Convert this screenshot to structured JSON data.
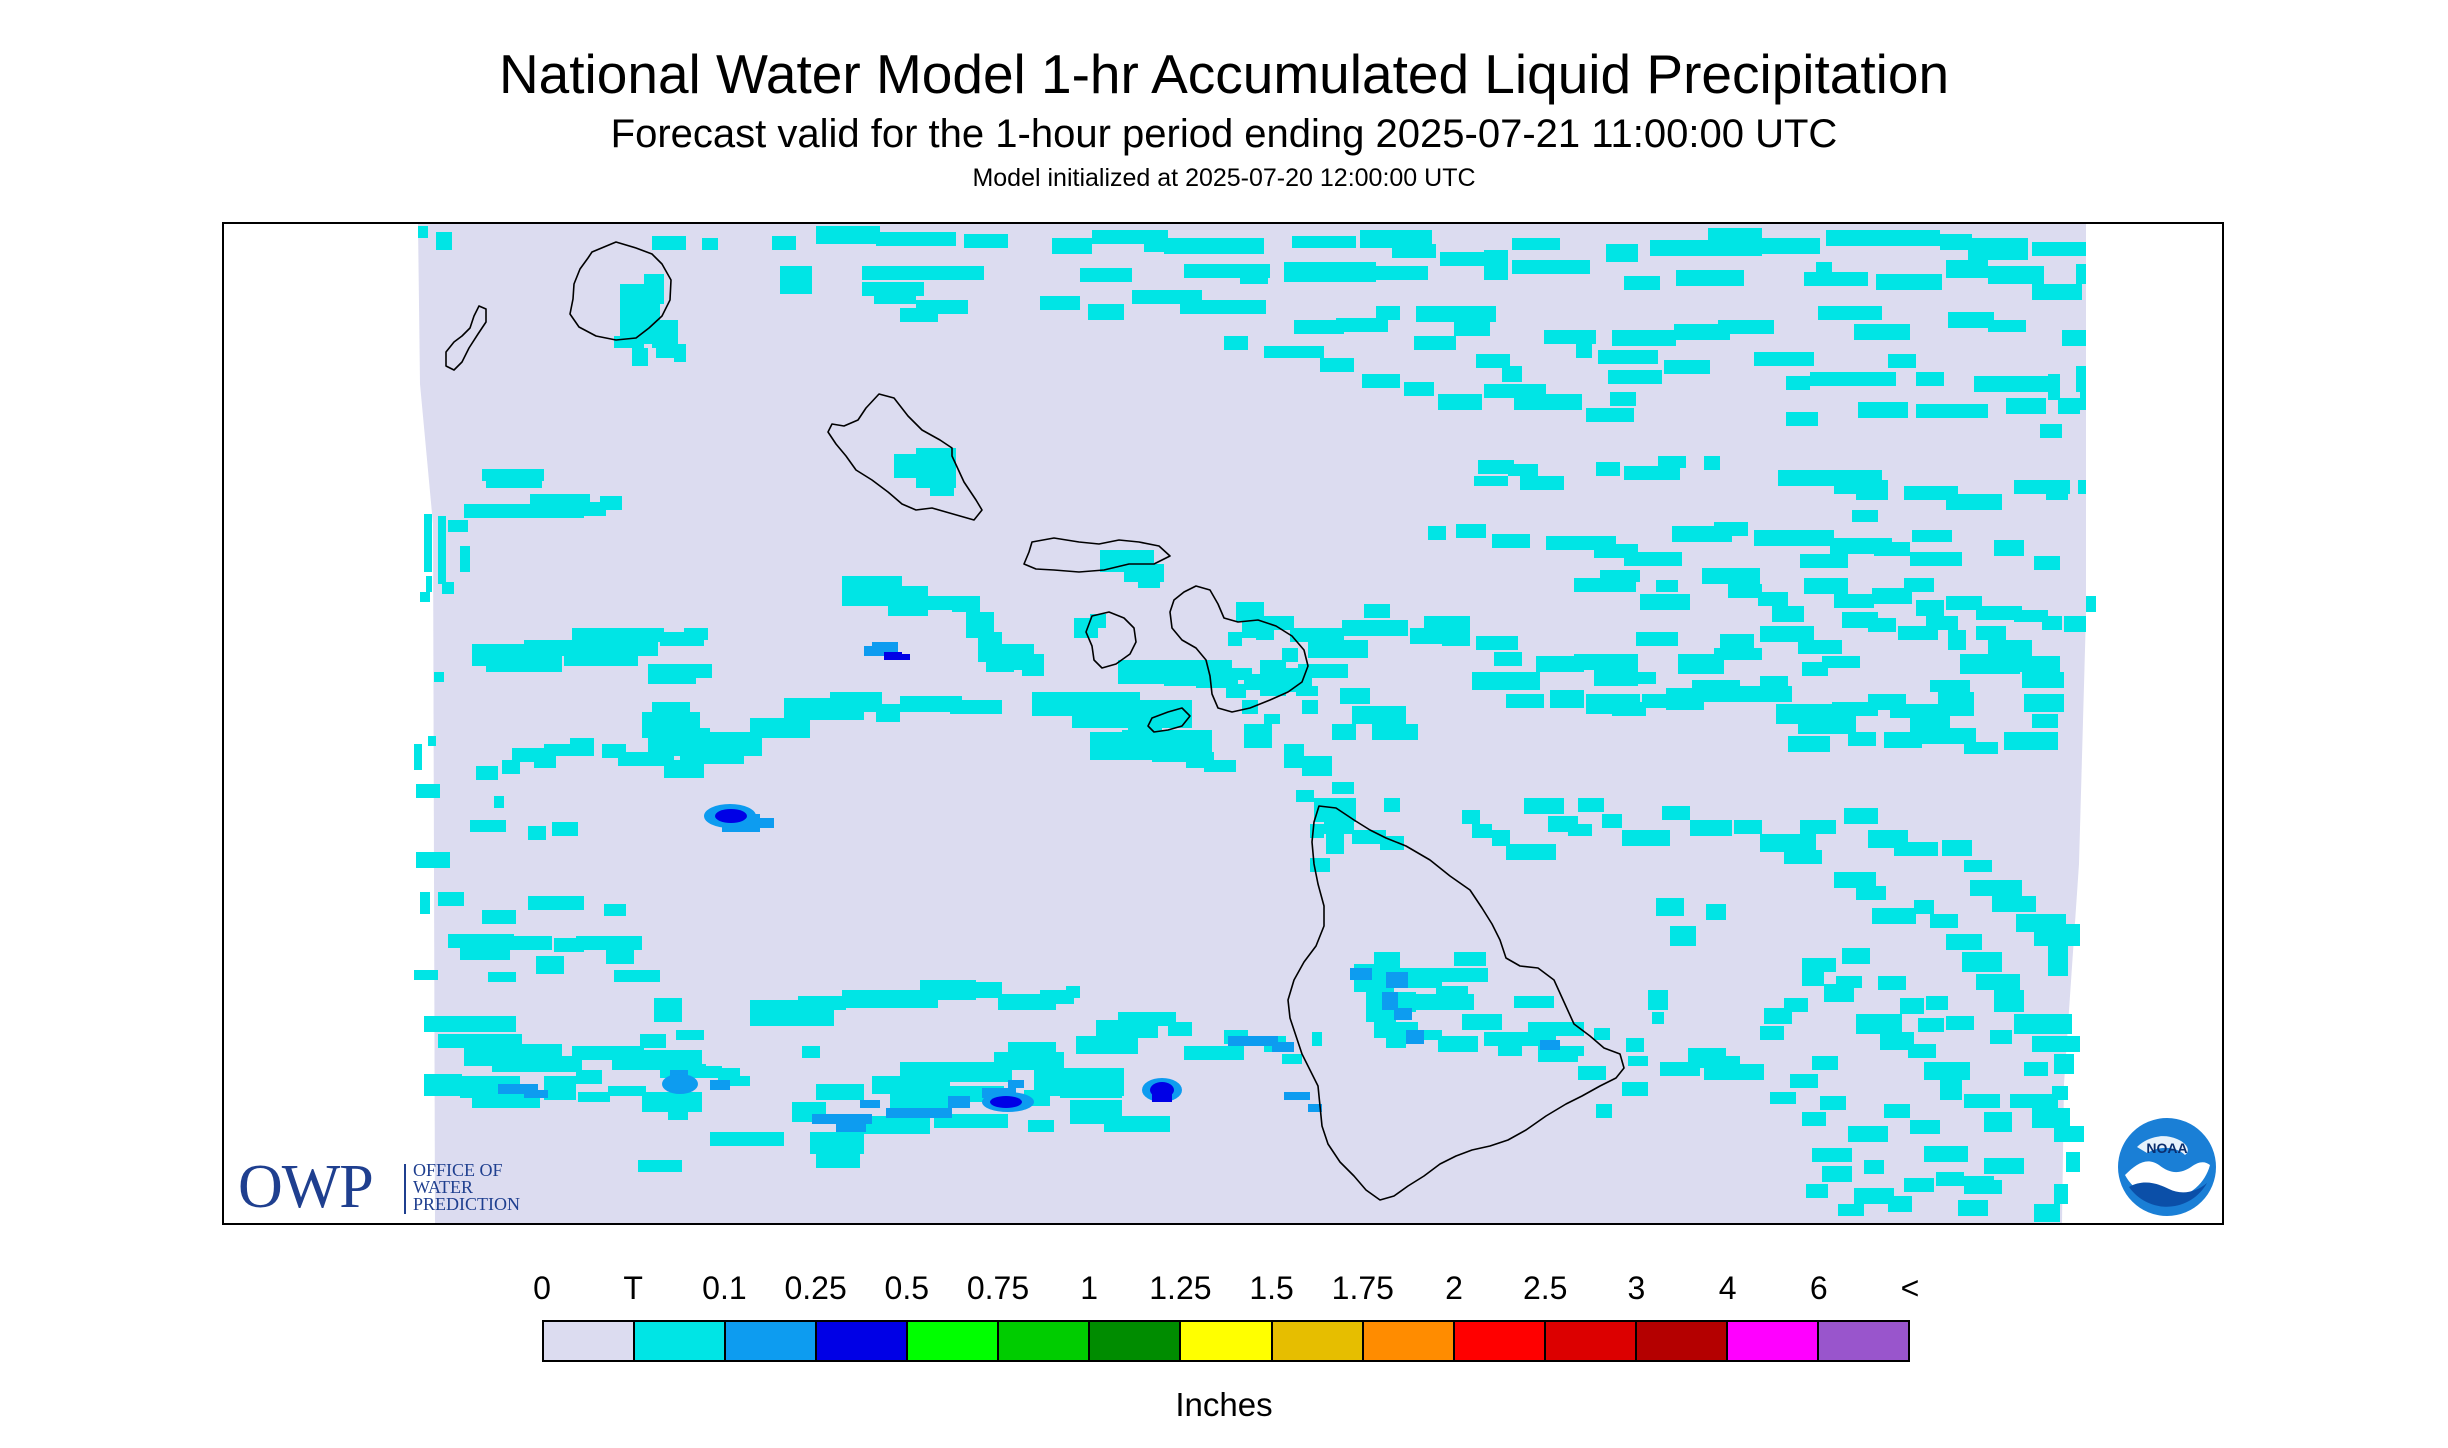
{
  "header": {
    "title": "National Water Model 1-hr Accumulated Liquid Precipitation",
    "subtitle": "Forecast valid for the 1-hour period ending 2025-07-21 11:00:00 UTC",
    "init_note": "Model initialized at 2025-07-20 12:00:00 UTC"
  },
  "logos": {
    "owp_mark": "OWP",
    "owp_lines": [
      "Office of",
      "Water",
      "Prediction"
    ],
    "noaa_mark": "NOAA"
  },
  "legend": {
    "labels": [
      "0",
      "T",
      "0.1",
      "0.25",
      "0.5",
      "0.75",
      "1",
      "1.25",
      "1.5",
      "1.75",
      "2",
      "2.5",
      "3",
      "4",
      "6",
      "<"
    ],
    "colors": [
      "#dcdcf0",
      "#00e5e5",
      "#0d9cf0",
      "#0000e6",
      "#00ff00",
      "#00cc00",
      "#008c00",
      "#ffff00",
      "#e6be00",
      "#ff8c00",
      "#ff0000",
      "#dc0000",
      "#b40000",
      "#ff00ff",
      "#9955cc"
    ],
    "units": "Inches"
  },
  "map": {
    "domain_fill": "#dcdcf0",
    "light_precip_color": "#00e5e5",
    "moderate_precip_color": "#0d9cf0",
    "heavy_precip_color": "#0000e6",
    "islands": [
      "Kauai",
      "Niihau",
      "Oahu",
      "Molokai",
      "Lanai",
      "Maui",
      "Kahoolawe",
      "Hawaii"
    ]
  }
}
